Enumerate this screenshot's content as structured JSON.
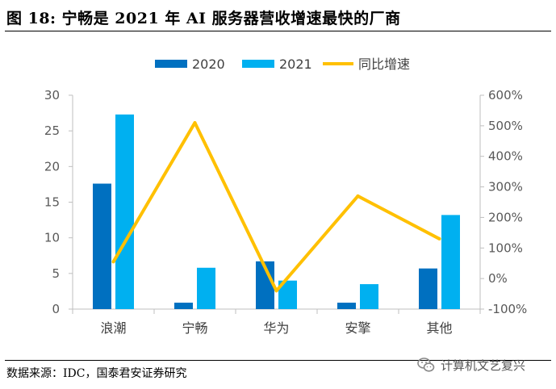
{
  "title": "图 18:  宁畅是 2021 年 AI 服务器营收增速最快的厂商",
  "source": "数据来源：IDC，国泰君安证券研究",
  "watermark": "计算机文艺复兴",
  "icon": "wechat-icon",
  "colors": {
    "s2020": "#0070C0",
    "s2021": "#00B0F0",
    "growth": "#FFC000",
    "axis": "#BFBFBF"
  },
  "chart_data": {
    "type": "bar",
    "title": "",
    "categories": [
      "浪潮",
      "宁畅",
      "华为",
      "安擎",
      "其他"
    ],
    "series": [
      {
        "name": "2020",
        "kind": "bar",
        "values": [
          17.6,
          0.9,
          6.7,
          0.9,
          5.7
        ]
      },
      {
        "name": "2021",
        "kind": "bar",
        "values": [
          27.3,
          5.8,
          4.0,
          3.5,
          13.2
        ]
      },
      {
        "name": "同比增速",
        "kind": "line",
        "axis": "right",
        "values": [
          0.55,
          5.1,
          -0.4,
          2.7,
          1.3
        ]
      }
    ],
    "ylim": [
      0,
      30
    ],
    "yticks": [
      "0",
      "5",
      "10",
      "15",
      "20",
      "25",
      "30"
    ],
    "y2lim": [
      -1,
      6
    ],
    "y2ticks": [
      "-100%",
      "0%",
      "100%",
      "200%",
      "300%",
      "400%",
      "500%",
      "600%"
    ],
    "legend": [
      "2020",
      "2021",
      "同比增速"
    ],
    "legend_position": "top"
  }
}
